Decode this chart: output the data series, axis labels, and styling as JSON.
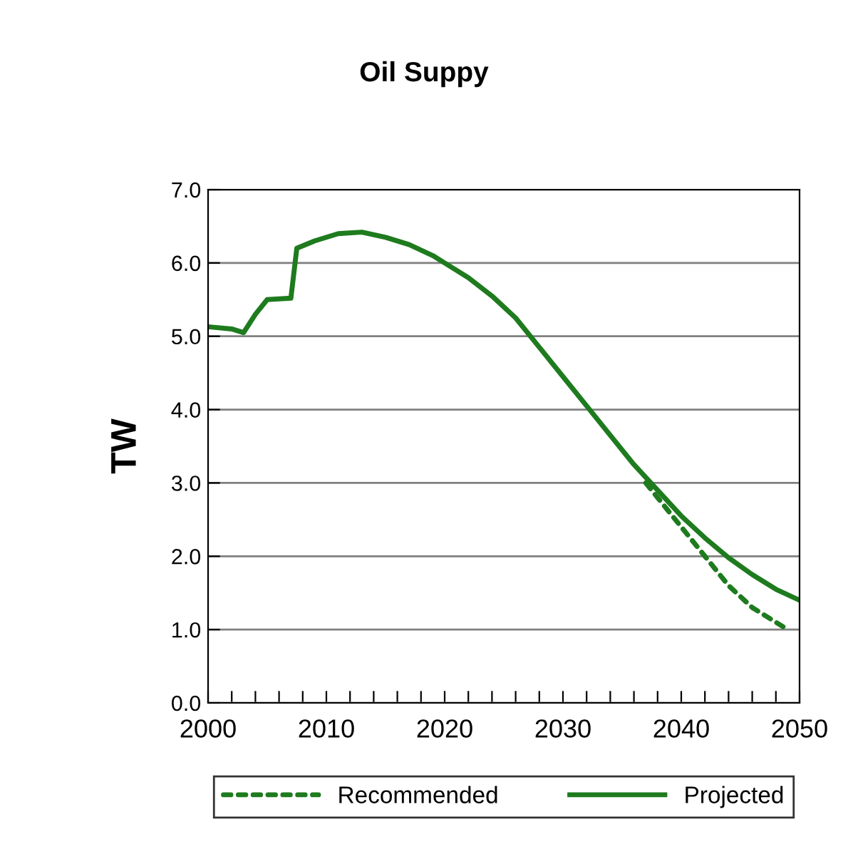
{
  "chart_data": {
    "type": "line",
    "title": "Oil Suppy",
    "ylabel": "TW",
    "xlim": [
      2000,
      2050
    ],
    "ylim": [
      0,
      7
    ],
    "xticks": [
      2000,
      {
        "value": 2002,
        "label": null
      },
      {
        "value": 2004,
        "label": null
      },
      {
        "value": 2006,
        "label": null
      },
      {
        "value": 2008,
        "label": null
      },
      2010,
      {
        "value": 2012,
        "label": null
      },
      {
        "value": 2014,
        "label": null
      },
      {
        "value": 2016,
        "label": null
      },
      {
        "value": 2018,
        "label": null
      },
      2020,
      {
        "value": 2022,
        "label": null
      },
      {
        "value": 2024,
        "label": null
      },
      {
        "value": 2026,
        "label": null
      },
      {
        "value": 2028,
        "label": null
      },
      2030,
      {
        "value": 2032,
        "label": null
      },
      {
        "value": 2034,
        "label": null
      },
      {
        "value": 2036,
        "label": null
      },
      {
        "value": 2038,
        "label": null
      },
      2040,
      {
        "value": 2042,
        "label": null
      },
      {
        "value": 2044,
        "label": null
      },
      {
        "value": 2046,
        "label": null
      },
      {
        "value": 2048,
        "label": null
      },
      2050
    ],
    "yticks": [
      {
        "value": 0,
        "label": "0.0"
      },
      {
        "value": 1,
        "label": "1.0"
      },
      {
        "value": 2,
        "label": "2.0"
      },
      {
        "value": 3,
        "label": "3.0"
      },
      {
        "value": 4,
        "label": "4.0"
      },
      {
        "value": 5,
        "label": "5.0"
      },
      {
        "value": 6,
        "label": "6.0"
      },
      {
        "value": 7,
        "label": "7.0"
      }
    ],
    "grid": "y",
    "legend": "bottom",
    "series": [
      {
        "name": "Recommended",
        "color": "#1e7b1e",
        "line_style": "dashed",
        "x": [
          2037,
          2038,
          2040,
          2042,
          2044,
          2046,
          2048,
          2049
        ],
        "values": [
          3.0,
          2.8,
          2.4,
          2.0,
          1.6,
          1.3,
          1.1,
          1.0
        ]
      },
      {
        "name": "Projected",
        "color": "#1e7b1e",
        "line_style": "solid",
        "x": [
          2000,
          2002,
          2003,
          2004,
          2005,
          2007,
          2007.5,
          2009,
          2011,
          2013,
          2015,
          2017,
          2019,
          2020,
          2022,
          2024,
          2026,
          2028,
          2030,
          2032,
          2034,
          2036,
          2038,
          2040,
          2042,
          2044,
          2046,
          2048,
          2050
        ],
        "values": [
          5.13,
          5.1,
          5.05,
          5.3,
          5.5,
          5.52,
          6.2,
          6.3,
          6.4,
          6.42,
          6.35,
          6.25,
          6.1,
          6.0,
          5.8,
          5.55,
          5.25,
          4.85,
          4.45,
          4.05,
          3.65,
          3.25,
          2.9,
          2.55,
          2.25,
          1.98,
          1.75,
          1.55,
          1.4
        ]
      }
    ]
  }
}
